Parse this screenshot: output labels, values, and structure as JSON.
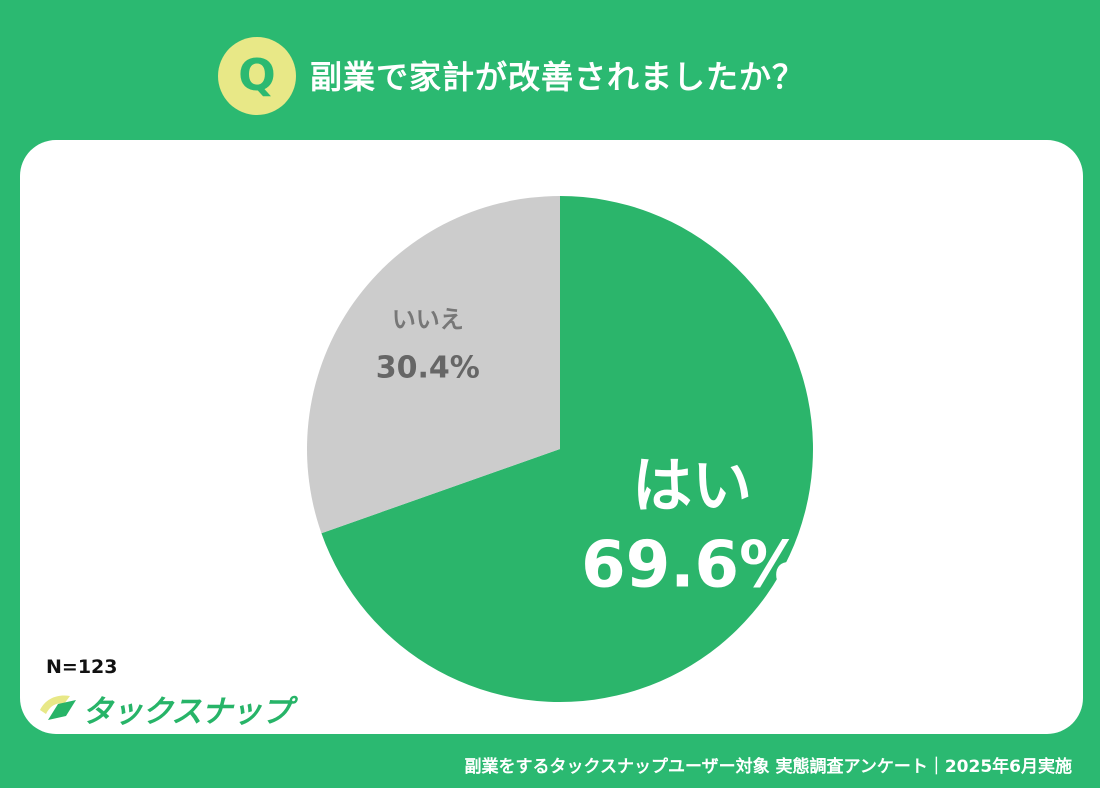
{
  "header": {
    "badge": "Q",
    "question": "副業で家計が改善されましたか？"
  },
  "chart_data": {
    "type": "pie",
    "slices": [
      {
        "label": "はい",
        "value": 69.6,
        "display": "69.6%",
        "color": "#2bb56b"
      },
      {
        "label": "いいえ",
        "value": 30.4,
        "display": "30.4%",
        "color": "#cccccc"
      }
    ],
    "start": "12 o'clock",
    "direction": "clockwise"
  },
  "sample_size": "N=123",
  "brand": {
    "name": "タックスナップ",
    "color": "#27b468"
  },
  "footer": "副業をするタックスナップユーザー対象 実態調査アンケート｜2025年6月実施"
}
